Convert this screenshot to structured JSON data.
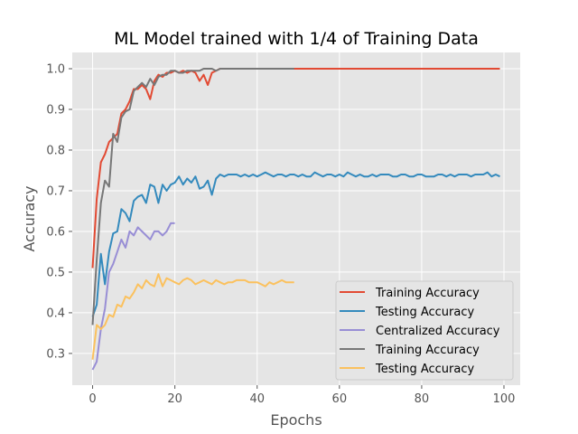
{
  "chart_data": {
    "type": "line",
    "title": "ML Model trained with 1/4 of Training Data",
    "xlabel": "Epochs",
    "ylabel": "Accuracy",
    "xlim": [
      -4.95,
      103.95
    ],
    "ylim": [
      0.222,
      1.04
    ],
    "xticks": [
      0,
      20,
      40,
      60,
      80,
      100
    ],
    "yticks": [
      0.3,
      0.4,
      0.5,
      0.6,
      0.7,
      0.8,
      0.9,
      1.0
    ],
    "ytick_labels": [
      "0.3",
      "0.4",
      "0.5",
      "0.6",
      "0.7",
      "0.8",
      "0.9",
      "1.0"
    ],
    "grid": true,
    "background": "#e5e5e5",
    "legend_position": "lower right",
    "series": [
      {
        "name": "Training Accuracy",
        "color": "#e24a33",
        "x": [
          0,
          1,
          2,
          3,
          4,
          5,
          6,
          7,
          8,
          9,
          10,
          11,
          12,
          13,
          14,
          15,
          16,
          17,
          18,
          19,
          20,
          21,
          22,
          23,
          24,
          25,
          26,
          27,
          28,
          29,
          30,
          31,
          32,
          33,
          34,
          35,
          36,
          37,
          38,
          39,
          40,
          41,
          42,
          43,
          44,
          45,
          46,
          47,
          48,
          49,
          50,
          51,
          52,
          53,
          54,
          55,
          56,
          57,
          58,
          59,
          60,
          61,
          62,
          63,
          64,
          65,
          66,
          67,
          68,
          69,
          70,
          71,
          72,
          73,
          74,
          75,
          76,
          77,
          78,
          79,
          80,
          81,
          82,
          83,
          84,
          85,
          86,
          87,
          88,
          89,
          90,
          91,
          92,
          93,
          94,
          95,
          96,
          97,
          98,
          99
        ],
        "y": [
          0.51,
          0.68,
          0.77,
          0.79,
          0.82,
          0.83,
          0.84,
          0.89,
          0.9,
          0.92,
          0.95,
          0.95,
          0.96,
          0.95,
          0.925,
          0.97,
          0.985,
          0.98,
          0.99,
          0.99,
          0.995,
          0.99,
          0.995,
          0.99,
          0.995,
          0.99,
          0.97,
          0.985,
          0.96,
          0.99,
          0.995,
          1.0,
          1.0,
          1.0,
          1.0,
          1.0,
          1.0,
          1.0,
          1.0,
          1.0,
          1.0,
          1.0,
          1.0,
          1.0,
          1.0,
          1.0,
          1.0,
          1.0,
          1.0,
          1.0,
          1.0,
          1.0,
          1.0,
          1.0,
          1.0,
          1.0,
          1.0,
          1.0,
          1.0,
          1.0,
          1.0,
          1.0,
          1.0,
          1.0,
          1.0,
          1.0,
          1.0,
          1.0,
          1.0,
          1.0,
          1.0,
          1.0,
          1.0,
          1.0,
          1.0,
          1.0,
          1.0,
          1.0,
          1.0,
          1.0,
          1.0,
          1.0,
          1.0,
          1.0,
          1.0,
          1.0,
          1.0,
          1.0,
          1.0,
          1.0,
          1.0,
          1.0,
          1.0,
          1.0,
          1.0,
          1.0,
          1.0,
          1.0,
          1.0,
          1.0
        ]
      },
      {
        "name": "Testing Accuracy",
        "color": "#348abd",
        "x": [
          0,
          1,
          2,
          3,
          4,
          5,
          6,
          7,
          8,
          9,
          10,
          11,
          12,
          13,
          14,
          15,
          16,
          17,
          18,
          19,
          20,
          21,
          22,
          23,
          24,
          25,
          26,
          27,
          28,
          29,
          30,
          31,
          32,
          33,
          34,
          35,
          36,
          37,
          38,
          39,
          40,
          41,
          42,
          43,
          44,
          45,
          46,
          47,
          48,
          49,
          50,
          51,
          52,
          53,
          54,
          55,
          56,
          57,
          58,
          59,
          60,
          61,
          62,
          63,
          64,
          65,
          66,
          67,
          68,
          69,
          70,
          71,
          72,
          73,
          74,
          75,
          76,
          77,
          78,
          79,
          80,
          81,
          82,
          83,
          84,
          85,
          86,
          87,
          88,
          89,
          90,
          91,
          92,
          93,
          94,
          95,
          96,
          97,
          98,
          99
        ],
        "y": [
          0.39,
          0.42,
          0.545,
          0.47,
          0.55,
          0.595,
          0.6,
          0.655,
          0.645,
          0.625,
          0.675,
          0.685,
          0.69,
          0.67,
          0.715,
          0.71,
          0.67,
          0.715,
          0.7,
          0.715,
          0.72,
          0.735,
          0.715,
          0.73,
          0.72,
          0.735,
          0.705,
          0.71,
          0.725,
          0.69,
          0.73,
          0.74,
          0.735,
          0.74,
          0.74,
          0.74,
          0.735,
          0.74,
          0.735,
          0.74,
          0.735,
          0.74,
          0.745,
          0.74,
          0.735,
          0.74,
          0.74,
          0.735,
          0.74,
          0.74,
          0.735,
          0.74,
          0.735,
          0.735,
          0.745,
          0.74,
          0.735,
          0.74,
          0.74,
          0.735,
          0.74,
          0.735,
          0.745,
          0.74,
          0.735,
          0.74,
          0.735,
          0.735,
          0.74,
          0.735,
          0.74,
          0.74,
          0.74,
          0.735,
          0.735,
          0.74,
          0.74,
          0.735,
          0.735,
          0.74,
          0.74,
          0.735,
          0.735,
          0.735,
          0.74,
          0.74,
          0.735,
          0.74,
          0.735,
          0.74,
          0.74,
          0.74,
          0.735,
          0.74,
          0.74,
          0.74,
          0.745,
          0.735,
          0.74,
          0.735
        ]
      },
      {
        "name": "Centralized Accuracy",
        "color": "#988ed5",
        "x": [
          0,
          1,
          2,
          3,
          4,
          5,
          6,
          7,
          8,
          9,
          10,
          11,
          12,
          13,
          14,
          15,
          16,
          17,
          18,
          19,
          20
        ],
        "y": [
          0.26,
          0.28,
          0.36,
          0.41,
          0.5,
          0.52,
          0.55,
          0.58,
          0.56,
          0.6,
          0.59,
          0.61,
          0.6,
          0.59,
          0.58,
          0.6,
          0.6,
          0.59,
          0.6,
          0.62,
          0.62
        ]
      },
      {
        "name": "Training Accuracy",
        "color": "#777777",
        "x": [
          0,
          1,
          2,
          3,
          4,
          5,
          6,
          7,
          8,
          9,
          10,
          11,
          12,
          13,
          14,
          15,
          16,
          17,
          18,
          19,
          20,
          21,
          22,
          23,
          24,
          25,
          26,
          27,
          28,
          29,
          30,
          31,
          32,
          33,
          34,
          35,
          36,
          37,
          38,
          39,
          40,
          41,
          42,
          43,
          44,
          45,
          46,
          47,
          48,
          49
        ],
        "y": [
          0.37,
          0.53,
          0.67,
          0.725,
          0.71,
          0.84,
          0.82,
          0.88,
          0.895,
          0.9,
          0.945,
          0.955,
          0.965,
          0.955,
          0.975,
          0.96,
          0.98,
          0.985,
          0.985,
          0.995,
          0.995,
          0.99,
          0.99,
          0.995,
          0.995,
          0.995,
          0.995,
          1.0,
          1.0,
          1.0,
          0.995,
          1.0,
          1.0,
          1.0,
          1.0,
          1.0,
          1.0,
          1.0,
          1.0,
          1.0,
          1.0,
          1.0,
          1.0,
          1.0,
          1.0,
          1.0,
          1.0,
          1.0,
          1.0,
          1.0
        ]
      },
      {
        "name": "Testing Accuracy",
        "color": "#fbc15e",
        "x": [
          0,
          1,
          2,
          3,
          4,
          5,
          6,
          7,
          8,
          9,
          10,
          11,
          12,
          13,
          14,
          15,
          16,
          17,
          18,
          19,
          20,
          21,
          22,
          23,
          24,
          25,
          26,
          27,
          28,
          29,
          30,
          31,
          32,
          33,
          34,
          35,
          36,
          37,
          38,
          39,
          40,
          41,
          42,
          43,
          44,
          45,
          46,
          47,
          48,
          49
        ],
        "y": [
          0.285,
          0.37,
          0.36,
          0.37,
          0.395,
          0.39,
          0.42,
          0.415,
          0.44,
          0.435,
          0.45,
          0.47,
          0.46,
          0.48,
          0.47,
          0.465,
          0.495,
          0.465,
          0.485,
          0.48,
          0.475,
          0.47,
          0.48,
          0.485,
          0.48,
          0.47,
          0.475,
          0.48,
          0.475,
          0.47,
          0.48,
          0.475,
          0.47,
          0.475,
          0.475,
          0.48,
          0.48,
          0.48,
          0.475,
          0.475,
          0.475,
          0.47,
          0.465,
          0.475,
          0.47,
          0.475,
          0.48,
          0.475,
          0.475,
          0.475
        ]
      }
    ]
  }
}
